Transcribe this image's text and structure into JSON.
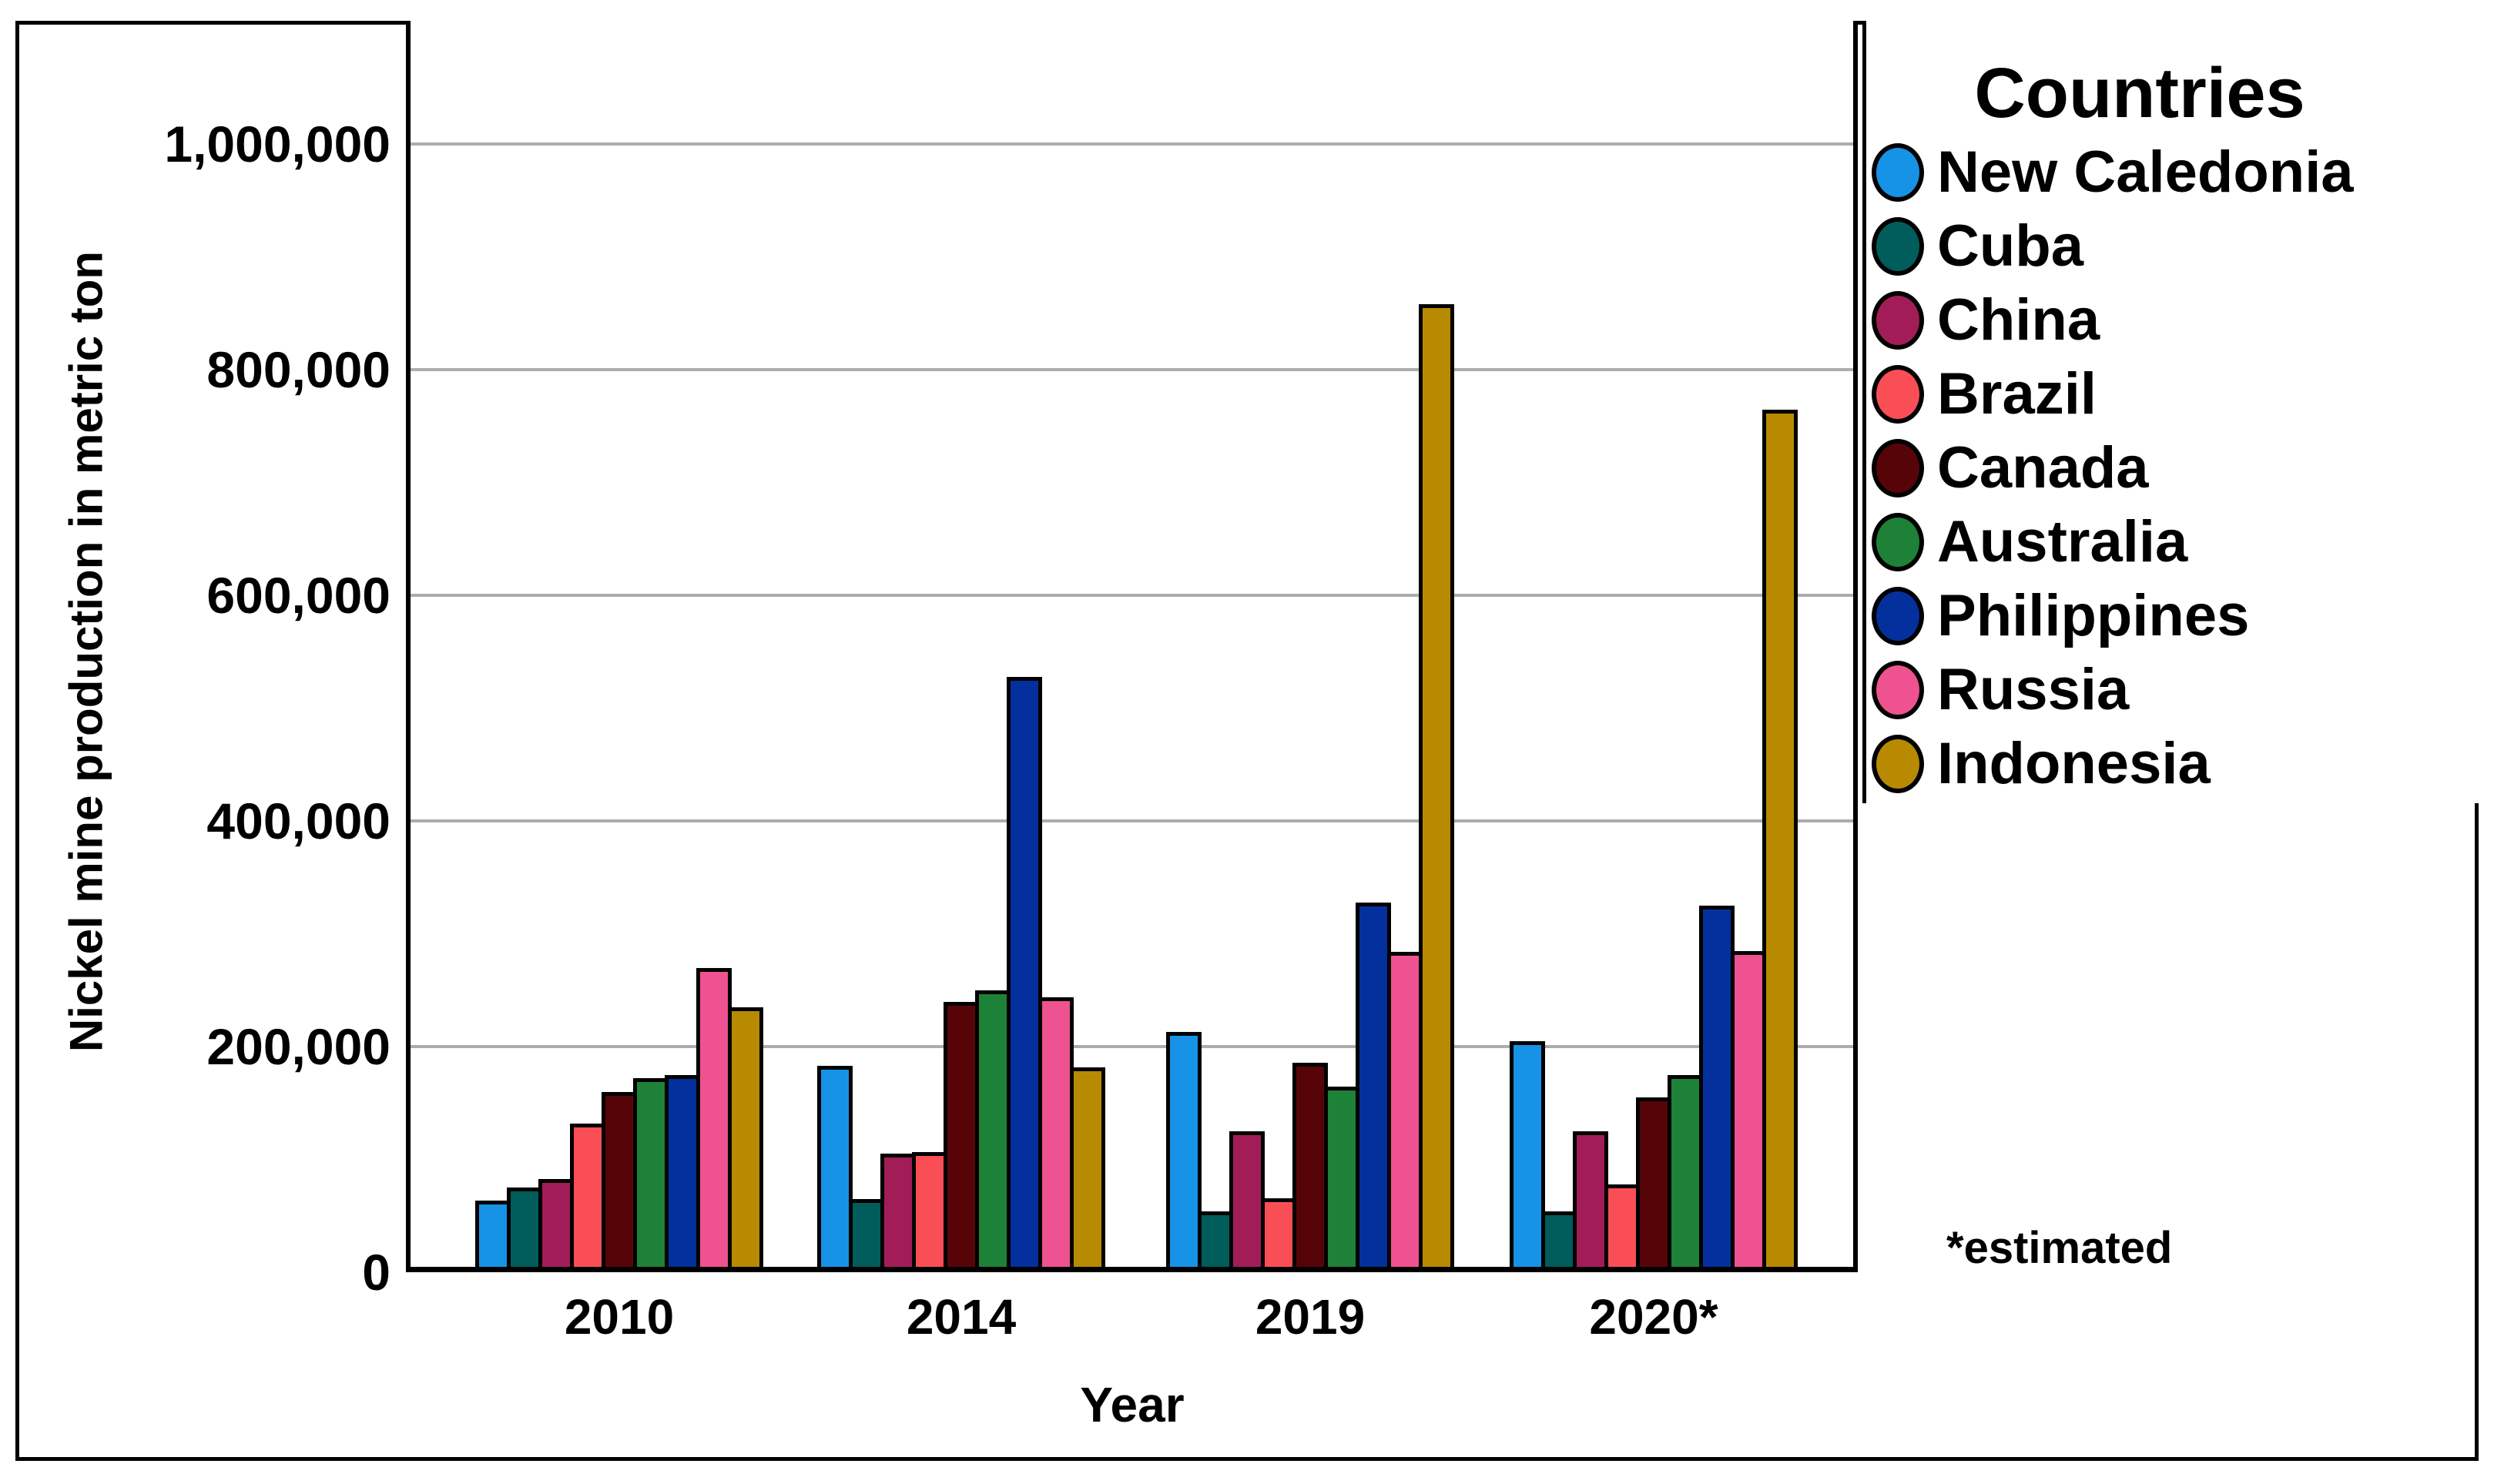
{
  "chart_data": {
    "type": "bar",
    "title": "",
    "xlabel": "Year",
    "ylabel": "Nickel mine production in metric ton",
    "legend_title": "Countries",
    "footnote": "*estimated",
    "grid": "horizontal",
    "legend_position": "right",
    "ylim": [
      0,
      1100000
    ],
    "categories": [
      "2010",
      "2014",
      "2019",
      "2020*"
    ],
    "yticks": [
      {
        "value": 0,
        "label": "0"
      },
      {
        "value": 200000,
        "label": "200,000"
      },
      {
        "value": 400000,
        "label": "400,000"
      },
      {
        "value": 600000,
        "label": "600,000"
      },
      {
        "value": 800000,
        "label": "800,000"
      },
      {
        "value": 1000000,
        "label": "1,000,000"
      }
    ],
    "series": [
      {
        "name": "New Caledonia",
        "color": "#1692E6",
        "values": [
          59000,
          178000,
          208000,
          200000
        ]
      },
      {
        "name": "Cuba",
        "color": "#015C5C",
        "values": [
          70000,
          60000,
          49000,
          49000
        ]
      },
      {
        "name": "China",
        "color": "#A21D57",
        "values": [
          78000,
          100000,
          120000,
          120000
        ]
      },
      {
        "name": "Brazil",
        "color": "#FA4E57",
        "values": [
          127000,
          102000,
          61000,
          73000
        ]
      },
      {
        "name": "Canada",
        "color": "#570409",
        "values": [
          155000,
          235000,
          181000,
          150000
        ]
      },
      {
        "name": "Australia",
        "color": "#1E8138",
        "values": [
          167000,
          245000,
          160000,
          170000
        ]
      },
      {
        "name": "Philippines",
        "color": "#03309C",
        "values": [
          170000,
          523000,
          323000,
          320000
        ]
      },
      {
        "name": "Russia",
        "color": "#EF5290",
        "values": [
          265000,
          239000,
          279000,
          280000
        ]
      },
      {
        "name": "Indonesia",
        "color": "#B88A02",
        "values": [
          230000,
          177000,
          853000,
          760000
        ]
      }
    ],
    "colors": {
      "gridline": "#ACACAC",
      "axis": "#000000",
      "background": "#FFFFFF"
    }
  }
}
